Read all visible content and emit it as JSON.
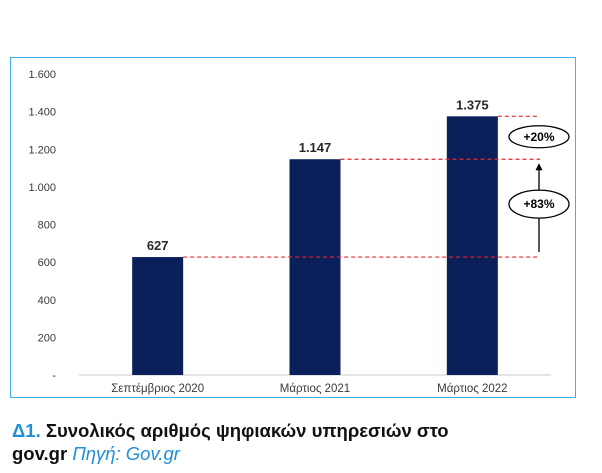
{
  "chart_data": {
    "type": "bar",
    "categories": [
      "Σεπτέμβριος 2020",
      "Μάρτιος 2021",
      "Μάρτιος 2022"
    ],
    "values": [
      627,
      1147,
      1375
    ],
    "value_labels": [
      "627",
      "1.147",
      "1.375"
    ],
    "ylim": [
      0,
      1600
    ],
    "yticks": [
      0,
      200,
      400,
      600,
      800,
      1000,
      1200,
      1400,
      1600
    ],
    "ytick_labels": [
      "-",
      "200",
      "400",
      "600",
      "800",
      "1.000",
      "1.200",
      "1.400",
      "1.600"
    ],
    "grid": false,
    "bar_color": "#0b1f5b",
    "reference_line_color": "#e8262d",
    "annotations": [
      {
        "text": "+20%",
        "from_value": 1147,
        "to_value": 1375
      },
      {
        "text": "+83%",
        "from_value": 627,
        "to_value": 1147
      }
    ]
  },
  "caption": {
    "figure_number": "Δ1.",
    "title_line1": "Συνολικός αριθμός ψηφιακών υπηρεσιών στο",
    "title_line2": "gov.gr",
    "source": "Πηγή: Gov.gr"
  },
  "colors": {
    "frame_border": "#3fb1e8",
    "accent_blue": "#1f8fd6"
  }
}
